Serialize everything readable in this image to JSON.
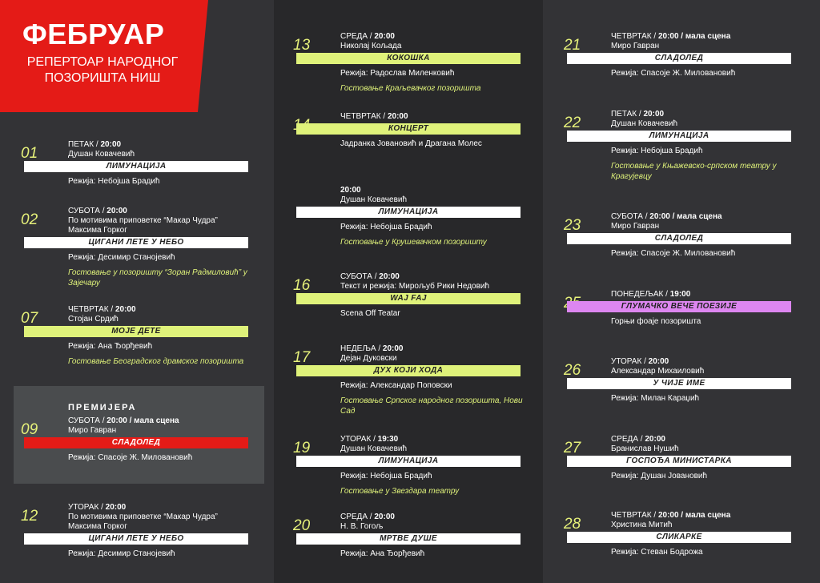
{
  "header": {
    "title": "ФЕБРУАР",
    "subtitle_line1": "РЕПЕРТОАР НАРОДНОГ",
    "subtitle_line2": "ПОЗОРИШТА НИШ"
  },
  "premiere_label": "ПРЕМИЈЕРА",
  "colors": {
    "accent_red": "#e41b17",
    "green": "#dff27a",
    "pink": "#dd86f0"
  },
  "events": [
    {
      "day": "01",
      "weekday": "ПЕТАК",
      "time": "20:00",
      "info": "Душан Ковачевић",
      "title": "ЛИМУНАЦИЈА",
      "director": "Режија: Небојша Брадић",
      "note": ""
    },
    {
      "day": "02",
      "weekday": "СУБОТА",
      "time": "20:00",
      "info": "По мотивима приповетке “Макар Чудра” Максима Горког",
      "title": "ЦИГАНИ ЛЕТЕ У НЕБО",
      "director": "Режија: Десимир Станојевић",
      "note": "Гостовање у позоришту “Зоран Радмиловић” у Зајечару"
    },
    {
      "day": "07",
      "weekday": "ЧЕТВРТАК",
      "time": "20:00",
      "info": "Стојан Срдић",
      "title": "МОЈЕ ДЕТЕ",
      "director": "Режија: Ана Ђорђевић",
      "note": "Гостовање Београдског драмског позоришта"
    },
    {
      "day": "09",
      "weekday": "СУБОТА",
      "time": "20:00 / мала сцена",
      "info": "Миро Гавран",
      "title": "СЛАДОЛЕД",
      "director": "Режија: Спасоје Ж. Миловановић",
      "note": ""
    },
    {
      "day": "12",
      "weekday": "УТОРАК",
      "time": "20:00",
      "info": "По мотивима приповетке “Макар Чудра” Максима Горког",
      "title": "ЦИГАНИ ЛЕТЕ У НЕБО",
      "director": "Режија: Десимир Станојевић",
      "note": ""
    },
    {
      "day": "13",
      "weekday": "СРЕДА",
      "time": "20:00",
      "info": "Николај Кољада",
      "title": "КОКОШКА",
      "director": "Режија: Радослав Миленковић",
      "note": "Гостовање Краљевачког позоришта"
    },
    {
      "day": "14",
      "weekday": "ЧЕТВРТАК",
      "time": "20:00",
      "info": "",
      "title": "КОНЦЕРТ",
      "director": "Јадранка Јовановић и Драгана Молес",
      "note": ""
    },
    {
      "day": "",
      "weekday": "",
      "time": "20:00",
      "info": "Душан Ковачевић",
      "title": "ЛИМУНАЦИЈА",
      "director": "Режија: Небојша Брадић",
      "note": "Гостовање у Крушевачком позоришту"
    },
    {
      "day": "16",
      "weekday": "СУБОТА",
      "time": "20:00",
      "info": "Текст и режија: Мирољуб Рики Недовић",
      "title": "WAJ FAJ",
      "director": "Scena Off Teatar",
      "note": ""
    },
    {
      "day": "17",
      "weekday": "НЕДЕЉА",
      "time": "20:00",
      "info": "Дејан Дуковски",
      "title": "ДУХ КОЈИ ХОДА",
      "director": "Режија: Александар Поповски",
      "note": "Гостовање Српског народног позоришта, Нови Сад"
    },
    {
      "day": "19",
      "weekday": "УТОРАК",
      "time": "19:30",
      "info": "Душан Ковачевић",
      "title": "ЛИМУНАЦИЈА",
      "director": "Режија: Небојша Брадић",
      "note": "Гостовање у Звездара театру"
    },
    {
      "day": "20",
      "weekday": "СРЕДА",
      "time": "20:00",
      "info": "Н. В. Гогољ",
      "title": "МРТВЕ ДУШЕ",
      "director": "Режија: Ана Ђорђевић",
      "note": ""
    },
    {
      "day": "21",
      "weekday": "ЧЕТВРТАК",
      "time": "20:00 / мала сцена",
      "info": "Миро Гавран",
      "title": "СЛАДОЛЕД",
      "director": "Режија: Спасоје Ж. Миловановић",
      "note": ""
    },
    {
      "day": "22",
      "weekday": "ПЕТАК",
      "time": "20:00",
      "info": "Душан Ковачевић",
      "title": "ЛИМУНАЦИЈА",
      "director": "Режија: Небојша Брадић",
      "note": "Гостовање у Књажевско-српском театру у Крагујевцу"
    },
    {
      "day": "23",
      "weekday": "СУБОТА",
      "time": "20:00 / мала сцена",
      "info": "Миро Гавран",
      "title": "СЛАДОЛЕД",
      "director": "Режија: Спасоје Ж. Миловановић",
      "note": ""
    },
    {
      "day": "25",
      "weekday": "ПОНЕДЕЉАК",
      "time": "19:00",
      "info": "",
      "title": "ГЛУМАЧКО ВЕЧЕ ПОЕЗИЈЕ",
      "director": "Горњи фоаје позоришта",
      "note": ""
    },
    {
      "day": "26",
      "weekday": "УТОРАК",
      "time": "20:00",
      "info": "Александар Михаиловић",
      "title": "У ЧИЈЕ ИМЕ",
      "director": "Режија: Милан Караџић",
      "note": ""
    },
    {
      "day": "27",
      "weekday": "СРЕДА",
      "time": "20:00",
      "info": "Бранислав Нушић",
      "title": "ГОСПОЂА МИНИСТАРКА",
      "director": "Режија: Душан Јовановић",
      "note": ""
    },
    {
      "day": "28",
      "weekday": "ЧЕТВРТАК",
      "time": "20:00 / мала сцена",
      "info": "Христина Митић",
      "title": "СЛИКАРКЕ",
      "director": "Режија: Стеван Бодрожа",
      "note": ""
    }
  ]
}
